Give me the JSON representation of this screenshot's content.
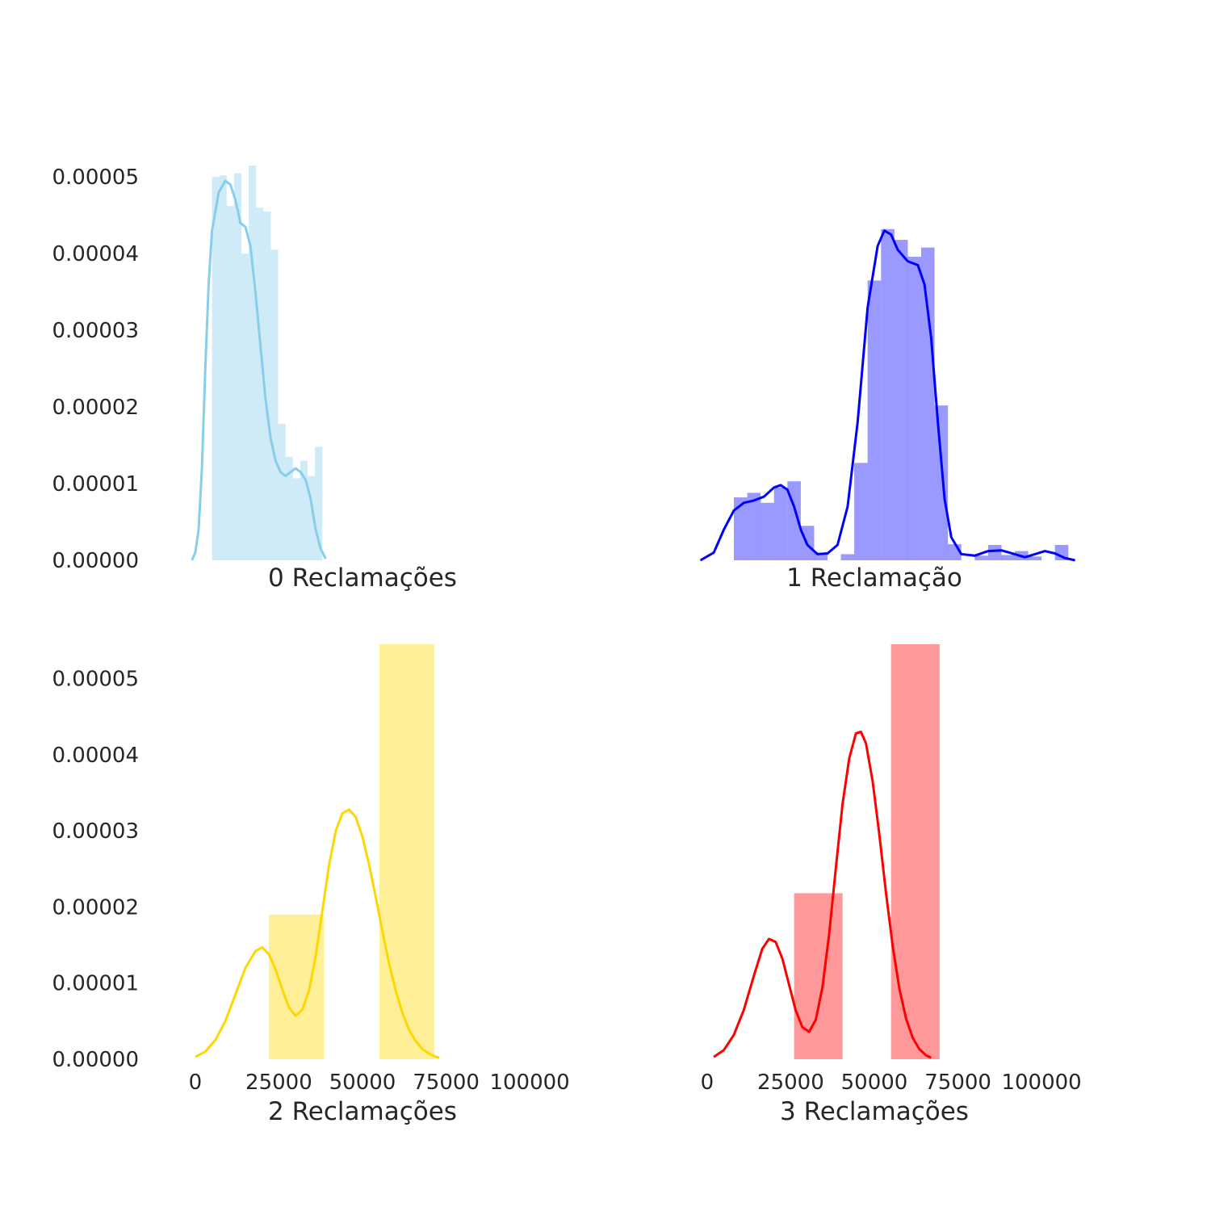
{
  "chart_data": [
    {
      "type": "bar",
      "xlabel": "0 Reclamações",
      "color": "#87ceeb",
      "ylim": [
        0,
        5.15e-05
      ],
      "xlim": [
        -13000,
        113000
      ],
      "yticks": [
        "0.00000",
        "0.00001",
        "0.00002",
        "0.00003",
        "0.00004",
        "0.00005"
      ],
      "ytick_values": [
        0,
        1e-05,
        2e-05,
        3e-05,
        4e-05,
        5e-05
      ],
      "xticks": [],
      "bars": [
        {
          "x0": 5000,
          "x1": 7200,
          "value": 5e-05
        },
        {
          "x0": 7200,
          "x1": 9400,
          "value": 5.02e-05
        },
        {
          "x0": 9400,
          "x1": 11600,
          "value": 4.62e-05
        },
        {
          "x0": 11600,
          "x1": 13800,
          "value": 5.05e-05
        },
        {
          "x0": 13800,
          "x1": 16000,
          "value": 4e-05
        },
        {
          "x0": 16000,
          "x1": 18200,
          "value": 5.15e-05
        },
        {
          "x0": 18200,
          "x1": 20400,
          "value": 4.6e-05
        },
        {
          "x0": 20400,
          "x1": 22600,
          "value": 4.55e-05
        },
        {
          "x0": 22600,
          "x1": 24800,
          "value": 4.05e-05
        },
        {
          "x0": 24800,
          "x1": 27000,
          "value": 1.78e-05
        },
        {
          "x0": 27000,
          "x1": 29200,
          "value": 1.35e-05
        },
        {
          "x0": 29200,
          "x1": 31400,
          "value": 1.07e-05
        },
        {
          "x0": 31400,
          "x1": 33600,
          "value": 1.3e-05
        },
        {
          "x0": 33600,
          "x1": 35800,
          "value": 1.1e-05
        },
        {
          "x0": 35800,
          "x1": 38000,
          "value": 1.48e-05
        }
      ],
      "kde": [
        [
          -1000,
          0.0
        ],
        [
          0,
          1e-06
        ],
        [
          1000,
          4e-06
        ],
        [
          2000,
          1.2e-05
        ],
        [
          3000,
          2.5e-05
        ],
        [
          4000,
          3.6e-05
        ],
        [
          5000,
          4.3e-05
        ],
        [
          7000,
          4.8e-05
        ],
        [
          9000,
          4.95e-05
        ],
        [
          10500,
          4.9e-05
        ],
        [
          12000,
          4.7e-05
        ],
        [
          13500,
          4.4e-05
        ],
        [
          15000,
          4.35e-05
        ],
        [
          16500,
          4.1e-05
        ],
        [
          18000,
          3.5e-05
        ],
        [
          19500,
          2.8e-05
        ],
        [
          21000,
          2.1e-05
        ],
        [
          22500,
          1.6e-05
        ],
        [
          24000,
          1.3e-05
        ],
        [
          25500,
          1.15e-05
        ],
        [
          27000,
          1.1e-05
        ],
        [
          28500,
          1.15e-05
        ],
        [
          30000,
          1.2e-05
        ],
        [
          31500,
          1.15e-05
        ],
        [
          33000,
          1.05e-05
        ],
        [
          34500,
          8e-06
        ],
        [
          36000,
          4e-06
        ],
        [
          37500,
          1.5e-06
        ],
        [
          39000,
          2e-07
        ]
      ]
    },
    {
      "type": "bar",
      "xlabel": "1 Reclamação",
      "color": "#0000ff",
      "ylim": [
        0,
        5.15e-05
      ],
      "xlim": [
        -13000,
        113000
      ],
      "yticks": [],
      "xticks": [],
      "bars": [
        {
          "x0": 8000,
          "x1": 12000,
          "value": 8.2e-06
        },
        {
          "x0": 12000,
          "x1": 16000,
          "value": 8.8e-06
        },
        {
          "x0": 16000,
          "x1": 20000,
          "value": 7.5e-06
        },
        {
          "x0": 20000,
          "x1": 24000,
          "value": 9.5e-06
        },
        {
          "x0": 24000,
          "x1": 28000,
          "value": 1.03e-05
        },
        {
          "x0": 28000,
          "x1": 32000,
          "value": 4.5e-06
        },
        {
          "x0": 32000,
          "x1": 36000,
          "value": 1e-06
        },
        {
          "x0": 36000,
          "x1": 40000,
          "value": 0.0
        },
        {
          "x0": 40000,
          "x1": 44000,
          "value": 8e-07
        },
        {
          "x0": 44000,
          "x1": 48000,
          "value": 1.27e-05
        },
        {
          "x0": 48000,
          "x1": 52000,
          "value": 3.65e-05
        },
        {
          "x0": 52000,
          "x1": 56000,
          "value": 4.32e-05
        },
        {
          "x0": 56000,
          "x1": 60000,
          "value": 4.18e-05
        },
        {
          "x0": 60000,
          "x1": 64000,
          "value": 3.96e-05
        },
        {
          "x0": 64000,
          "x1": 68000,
          "value": 4.08e-05
        },
        {
          "x0": 68000,
          "x1": 72000,
          "value": 2.02e-05
        },
        {
          "x0": 72000,
          "x1": 76000,
          "value": 2.1e-06
        },
        {
          "x0": 76000,
          "x1": 80000,
          "value": 0.0
        },
        {
          "x0": 80000,
          "x1": 84000,
          "value": 6e-07
        },
        {
          "x0": 84000,
          "x1": 88000,
          "value": 2e-06
        },
        {
          "x0": 88000,
          "x1": 92000,
          "value": 7e-07
        },
        {
          "x0": 92000,
          "x1": 96000,
          "value": 1.2e-06
        },
        {
          "x0": 96000,
          "x1": 100000,
          "value": 5e-07
        },
        {
          "x0": 100000,
          "x1": 104000,
          "value": 0.0
        },
        {
          "x0": 104000,
          "x1": 108000,
          "value": 2e-06
        }
      ],
      "kde": [
        [
          -2000,
          0.0
        ],
        [
          2000,
          1e-06
        ],
        [
          5000,
          4e-06
        ],
        [
          8000,
          6.5e-06
        ],
        [
          11000,
          7.5e-06
        ],
        [
          14000,
          7.8e-06
        ],
        [
          17000,
          8.3e-06
        ],
        [
          20000,
          9.5e-06
        ],
        [
          22000,
          9.8e-06
        ],
        [
          24000,
          9.2e-06
        ],
        [
          26000,
          7e-06
        ],
        [
          28000,
          4e-06
        ],
        [
          30000,
          2e-06
        ],
        [
          33000,
          8e-07
        ],
        [
          36000,
          9e-07
        ],
        [
          39000,
          2e-06
        ],
        [
          42000,
          7e-06
        ],
        [
          45000,
          1.8e-05
        ],
        [
          48000,
          3.3e-05
        ],
        [
          51000,
          4.1e-05
        ],
        [
          53000,
          4.3e-05
        ],
        [
          55000,
          4.25e-05
        ],
        [
          57000,
          4.05e-05
        ],
        [
          60000,
          3.9e-05
        ],
        [
          63000,
          3.85e-05
        ],
        [
          65000,
          3.6e-05
        ],
        [
          67000,
          2.9e-05
        ],
        [
          69000,
          1.8e-05
        ],
        [
          71000,
          8e-06
        ],
        [
          73000,
          3e-06
        ],
        [
          76000,
          8e-07
        ],
        [
          80000,
          6e-07
        ],
        [
          84000,
          1.2e-06
        ],
        [
          88000,
          1.3e-06
        ],
        [
          92000,
          8e-07
        ],
        [
          95000,
          4e-07
        ],
        [
          98000,
          8e-07
        ],
        [
          101000,
          1.2e-06
        ],
        [
          104000,
          9e-07
        ],
        [
          107000,
          3e-07
        ],
        [
          110000,
          0.0
        ]
      ]
    },
    {
      "type": "bar",
      "xlabel": "2 Reclamações",
      "color": "#ffd700",
      "ylim": [
        0,
        5.45e-05
      ],
      "xlim": [
        -13000,
        113000
      ],
      "yticks": [
        "0.00000",
        "0.00001",
        "0.00002",
        "0.00003",
        "0.00004",
        "0.00005"
      ],
      "ytick_values": [
        0,
        1e-05,
        2e-05,
        3e-05,
        4e-05,
        5e-05
      ],
      "xticks": [
        "0",
        "25000",
        "50000",
        "75000",
        "100000"
      ],
      "xtick_values": [
        0,
        25000,
        50000,
        75000,
        100000
      ],
      "bars": [
        {
          "x0": 22000,
          "x1": 38500,
          "value": 1.9e-05
        },
        {
          "x0": 55000,
          "x1": 71500,
          "value": 5.45e-05
        }
      ],
      "kde": [
        [
          0,
          3e-07
        ],
        [
          3000,
          1e-06
        ],
        [
          6000,
          2.5e-06
        ],
        [
          9000,
          5e-06
        ],
        [
          12000,
          8.5e-06
        ],
        [
          15000,
          1.2e-05
        ],
        [
          18000,
          1.42e-05
        ],
        [
          20000,
          1.47e-05
        ],
        [
          22000,
          1.38e-05
        ],
        [
          24000,
          1.18e-05
        ],
        [
          26000,
          9.2e-06
        ],
        [
          28000,
          6.8e-06
        ],
        [
          30000,
          5.7e-06
        ],
        [
          32000,
          6.5e-06
        ],
        [
          34000,
          9e-06
        ],
        [
          36000,
          1.35e-05
        ],
        [
          38000,
          1.95e-05
        ],
        [
          40000,
          2.55e-05
        ],
        [
          42000,
          3e-05
        ],
        [
          44000,
          3.23e-05
        ],
        [
          46000,
          3.28e-05
        ],
        [
          48000,
          3.18e-05
        ],
        [
          50000,
          2.92e-05
        ],
        [
          52000,
          2.55e-05
        ],
        [
          54000,
          2.12e-05
        ],
        [
          56000,
          1.67e-05
        ],
        [
          58000,
          1.25e-05
        ],
        [
          60000,
          8.9e-06
        ],
        [
          62000,
          6e-06
        ],
        [
          64000,
          3.8e-06
        ],
        [
          66000,
          2.3e-06
        ],
        [
          68000,
          1.3e-06
        ],
        [
          70000,
          7e-07
        ],
        [
          72000,
          3e-07
        ],
        [
          73000,
          2e-07
        ]
      ]
    },
    {
      "type": "bar",
      "xlabel": "3 Reclamações",
      "color": "#ff0000",
      "ylim": [
        0,
        5.45e-05
      ],
      "xlim": [
        -13000,
        113000
      ],
      "yticks": [],
      "xticks": [
        "0",
        "25000",
        "50000",
        "75000",
        "100000"
      ],
      "xtick_values": [
        0,
        25000,
        50000,
        75000,
        100000
      ],
      "bars": [
        {
          "x0": 26000,
          "x1": 40500,
          "value": 2.18e-05
        },
        {
          "x0": 55000,
          "x1": 69500,
          "value": 5.45e-05
        }
      ],
      "kde": [
        [
          2000,
          3e-07
        ],
        [
          5000,
          1.2e-06
        ],
        [
          8000,
          3.2e-06
        ],
        [
          11000,
          6.5e-06
        ],
        [
          14000,
          1.1e-05
        ],
        [
          16500,
          1.45e-05
        ],
        [
          18500,
          1.58e-05
        ],
        [
          20500,
          1.54e-05
        ],
        [
          22500,
          1.32e-05
        ],
        [
          24500,
          9.8e-06
        ],
        [
          26500,
          6.4e-06
        ],
        [
          28500,
          4.2e-06
        ],
        [
          30500,
          3.6e-06
        ],
        [
          32500,
          5.2e-06
        ],
        [
          34500,
          9.5e-06
        ],
        [
          36500,
          1.65e-05
        ],
        [
          38500,
          2.52e-05
        ],
        [
          40500,
          3.35e-05
        ],
        [
          42500,
          3.95e-05
        ],
        [
          44500,
          4.28e-05
        ],
        [
          46000,
          4.3e-05
        ],
        [
          47500,
          4.15e-05
        ],
        [
          49500,
          3.65e-05
        ],
        [
          51500,
          2.95e-05
        ],
        [
          53500,
          2.18e-05
        ],
        [
          55500,
          1.48e-05
        ],
        [
          57500,
          9.2e-06
        ],
        [
          59500,
          5.3e-06
        ],
        [
          61500,
          2.8e-06
        ],
        [
          63500,
          1.3e-06
        ],
        [
          65500,
          5e-07
        ],
        [
          67000,
          2e-07
        ]
      ]
    }
  ]
}
